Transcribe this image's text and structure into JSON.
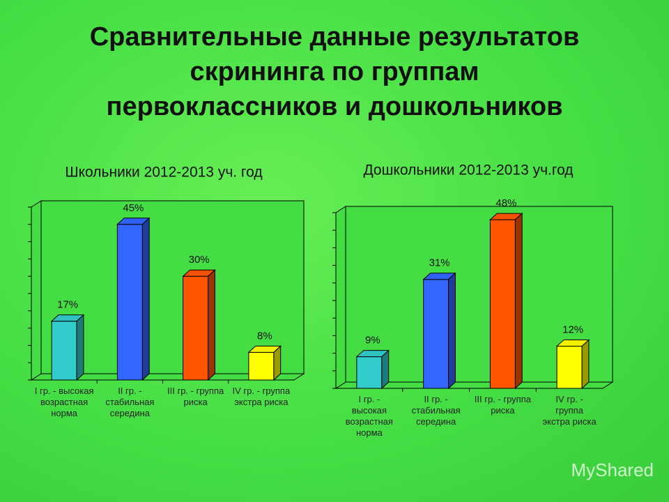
{
  "title": [
    "Сравнительные данные результатов",
    "скрининга по группам",
    "первоклассников и дошкольников"
  ],
  "watermark": "MyShared",
  "chart_data": [
    {
      "type": "bar",
      "title": "Школьники 2012-2013 уч. год",
      "categories": [
        "I гр. - высокая возрастная норма",
        "II гр. - стабильная середина",
        "III гр. - группа риска",
        "IV гр. - группа экстра риска"
      ],
      "values": [
        17,
        45,
        30,
        8
      ],
      "value_labels": [
        "17%",
        "45%",
        "30%",
        "8%"
      ],
      "colors": [
        "#33cccc",
        "#3366ff",
        "#ff5500",
        "#ffff00"
      ],
      "ylim": [
        0,
        50
      ],
      "yticks": [
        0,
        5,
        10,
        15,
        20,
        25,
        30,
        35,
        40,
        45,
        50
      ]
    },
    {
      "type": "bar",
      "title": "Дошкольники 2012-2013 уч.год",
      "categories": [
        "I гр. - высокая возрастная норма",
        "II гр. - стабильная середина",
        "III гр. - группа риска",
        "IV гр. - группа экстра риска"
      ],
      "values": [
        9,
        31,
        48,
        12
      ],
      "value_labels": [
        "9%",
        "31%",
        "48%",
        "12%"
      ],
      "colors": [
        "#33cccc",
        "#3366ff",
        "#ff5500",
        "#ffff00"
      ],
      "ylim": [
        0,
        50
      ],
      "yticks": [
        0,
        5,
        10,
        15,
        20,
        25,
        30,
        35,
        40,
        45,
        50
      ]
    }
  ]
}
